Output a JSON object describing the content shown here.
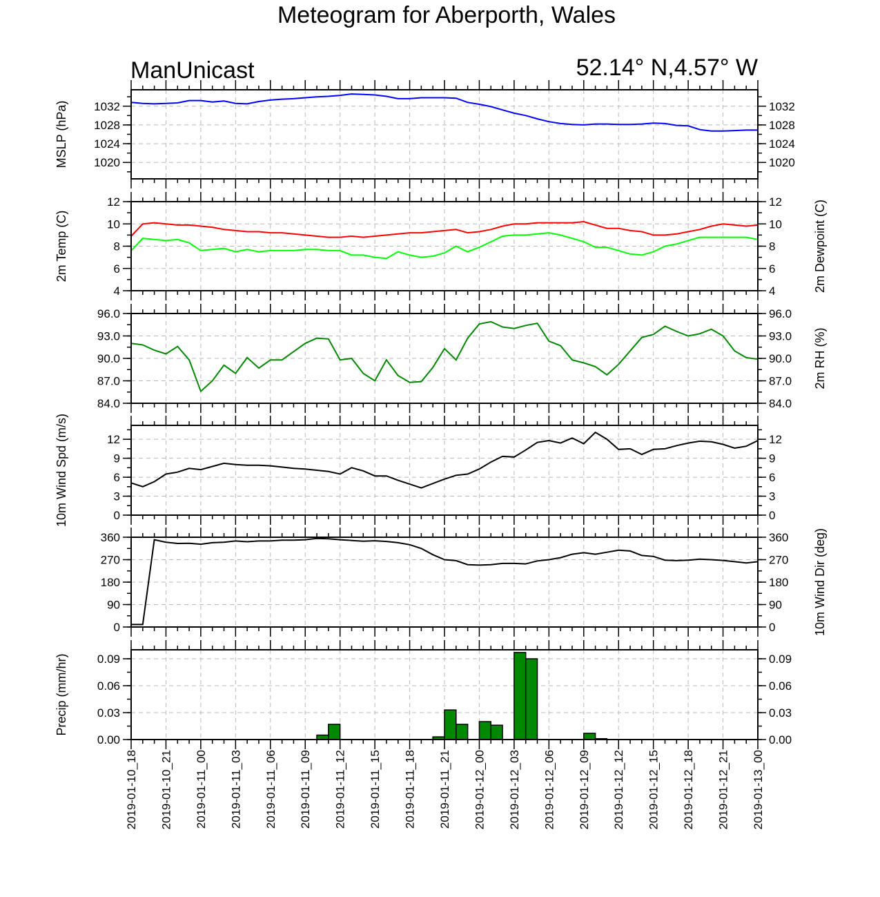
{
  "title": "Meteogram for Aberporth, Wales",
  "left_label": "ManUnicast",
  "right_label": "52.14° N,4.57° W",
  "colors": {
    "mslp": "#0000ff",
    "temp": "#ff0000",
    "dewpoint": "#00ff00",
    "rh": "#008800",
    "wind": "#000000",
    "precip_fill": "#008800"
  },
  "chart_data": {
    "type": "line",
    "x_tick_labels": [
      "2019-01-10_18",
      "2019-01-10_21",
      "2019-01-11_00",
      "2019-01-11_03",
      "2019-01-11_06",
      "2019-01-11_09",
      "2019-01-11_12",
      "2019-01-11_15",
      "2019-01-11_18",
      "2019-01-11_21",
      "2019-01-12_00",
      "2019-01-12_03",
      "2019-01-12_06",
      "2019-01-12_09",
      "2019-01-12_12",
      "2019-01-12_15",
      "2019-01-12_18",
      "2019-01-12_21",
      "2019-01-13_00"
    ],
    "x_hours": [
      0,
      1,
      2,
      3,
      4,
      5,
      6,
      7,
      8,
      9,
      10,
      11,
      12,
      13,
      14,
      15,
      16,
      17,
      18,
      19,
      20,
      21,
      22,
      23,
      24,
      25,
      26,
      27,
      28,
      29,
      30,
      31,
      32,
      33,
      34,
      35,
      36,
      37,
      38,
      39,
      40,
      41,
      42,
      43,
      44,
      45,
      46,
      47,
      48,
      49,
      50,
      51,
      52,
      53,
      54
    ],
    "panels": [
      {
        "id": "mslp",
        "ylabel_left": "MSLP (hPa)",
        "ylabel_right": "",
        "ylim": [
          1016.5,
          1035.5
        ],
        "yticks": [
          1020,
          1024,
          1028,
          1032
        ],
        "tick_labels": [
          "1020",
          "1024",
          "1028",
          "1032"
        ],
        "series": [
          {
            "values": [
              1032.8,
              1032.6,
              1032.5,
              1032.6,
              1032.7,
              1033.2,
              1033.2,
              1032.9,
              1033.1,
              1032.6,
              1032.5,
              1033.0,
              1033.3,
              1033.5,
              1033.6,
              1033.8,
              1034.0,
              1034.1,
              1034.3,
              1034.6,
              1034.5,
              1034.4,
              1034.1,
              1033.6,
              1033.6,
              1033.8,
              1033.8,
              1033.8,
              1033.7,
              1032.8,
              1032.4,
              1031.9,
              1031.2,
              1030.5,
              1030.0,
              1029.3,
              1028.7,
              1028.3,
              1028.1,
              1028.0,
              1028.2,
              1028.2,
              1028.1,
              1028.1,
              1028.2,
              1028.4,
              1028.3,
              1027.9,
              1027.8,
              1027.0,
              1026.7,
              1026.7,
              1026.8,
              1026.9,
              1026.9
            ]
          }
        ]
      },
      {
        "id": "temp",
        "ylabel_left": "2m Temp (C)",
        "ylabel_right": "2m Dewpoint (C)",
        "ylim": [
          4,
          12
        ],
        "yticks": [
          4,
          6,
          8,
          10,
          12
        ],
        "tick_labels": [
          "4",
          "6",
          "8",
          "10",
          "12"
        ],
        "series": [
          {
            "values": [
              8.9,
              10.0,
              10.1,
              10.0,
              9.9,
              9.9,
              9.8,
              9.7,
              9.5,
              9.4,
              9.3,
              9.3,
              9.2,
              9.2,
              9.1,
              9.0,
              8.9,
              8.8,
              8.8,
              8.9,
              8.8,
              8.9,
              9.0,
              9.1,
              9.2,
              9.2,
              9.3,
              9.4,
              9.5,
              9.2,
              9.3,
              9.5,
              9.8,
              10.0,
              10.0,
              10.1,
              10.1,
              10.1,
              10.1,
              10.2,
              9.9,
              9.6,
              9.6,
              9.4,
              9.3,
              9.0,
              9.0,
              9.1,
              9.3,
              9.5,
              9.8,
              10.0,
              9.9,
              9.8,
              9.9
            ]
          },
          {
            "values": [
              7.6,
              8.7,
              8.6,
              8.5,
              8.6,
              8.3,
              7.6,
              7.7,
              7.8,
              7.5,
              7.7,
              7.5,
              7.6,
              7.6,
              7.6,
              7.7,
              7.7,
              7.6,
              7.6,
              7.2,
              7.2,
              7.0,
              6.9,
              7.5,
              7.2,
              7.0,
              7.1,
              7.4,
              8.0,
              7.5,
              7.9,
              8.4,
              8.9,
              9.0,
              9.0,
              9.1,
              9.2,
              9.0,
              8.7,
              8.4,
              7.9,
              7.9,
              7.6,
              7.3,
              7.2,
              7.5,
              8.0,
              8.2,
              8.5,
              8.8,
              8.8,
              8.8,
              8.8,
              8.8,
              8.6
            ]
          }
        ]
      },
      {
        "id": "rh",
        "ylabel_left": "",
        "ylabel_right": "2m RH (%)",
        "ylim": [
          84,
          96
        ],
        "yticks": [
          84,
          87,
          90,
          93,
          96
        ],
        "tick_labels": [
          "84.0",
          "87.0",
          "90.0",
          "93.0",
          "96.0"
        ],
        "series": [
          {
            "values": [
              92.0,
              91.8,
              91.1,
              90.6,
              91.6,
              89.8,
              85.6,
              87.0,
              89.1,
              88.0,
              90.1,
              88.7,
              89.8,
              89.8,
              90.9,
              92.0,
              92.7,
              92.6,
              89.8,
              90.0,
              88.0,
              87.0,
              89.8,
              87.7,
              86.8,
              86.9,
              88.8,
              91.3,
              89.8,
              92.7,
              94.6,
              94.9,
              94.2,
              94.0,
              94.4,
              94.7,
              92.3,
              91.7,
              89.8,
              89.4,
              88.9,
              87.8,
              89.2,
              91.0,
              92.8,
              93.2,
              94.3,
              93.6,
              93.0,
              93.3,
              93.9,
              93.0,
              91.0,
              90.1,
              89.9
            ]
          }
        ]
      },
      {
        "id": "wspd",
        "ylabel_left": "10m Wind Spd (m/s)",
        "ylabel_right": "",
        "ylim": [
          0,
          14.2
        ],
        "yticks": [
          0,
          3,
          6,
          9,
          12
        ],
        "tick_labels": [
          "0",
          "3",
          "6",
          "9",
          "12"
        ],
        "series": [
          {
            "values": [
              5.1,
              4.5,
              5.3,
              6.5,
              6.8,
              7.4,
              7.2,
              7.7,
              8.2,
              8.0,
              7.9,
              7.9,
              7.8,
              7.6,
              7.4,
              7.3,
              7.1,
              6.9,
              6.5,
              7.5,
              7.0,
              6.2,
              6.2,
              5.5,
              4.9,
              4.3,
              5.0,
              5.7,
              6.3,
              6.5,
              7.3,
              8.4,
              9.3,
              9.2,
              10.3,
              11.5,
              11.8,
              11.4,
              12.2,
              11.3,
              13.1,
              12.0,
              10.4,
              10.5,
              9.6,
              10.4,
              10.5,
              11.0,
              11.4,
              11.7,
              11.6,
              11.2,
              10.6,
              10.9,
              11.8
            ]
          }
        ]
      },
      {
        "id": "wdir",
        "ylabel_left": "",
        "ylabel_right": "10m Wind Dir (deg)",
        "ylim": [
          0,
          360
        ],
        "yticks": [
          0,
          90,
          180,
          270,
          360
        ],
        "tick_labels": [
          "0",
          "90",
          "180",
          "270",
          "360"
        ],
        "series": [
          {
            "values": [
              10,
              10,
              350,
              340,
              335,
              336,
              332,
              338,
              340,
              345,
              342,
              345,
              345,
              348,
              348,
              350,
              355,
              354,
              350,
              347,
              344,
              346,
              343,
              338,
              330,
              315,
              290,
              270,
              266,
              250,
              248,
              250,
              255,
              255,
              253,
              265,
              270,
              278,
              292,
              298,
              292,
              300,
              308,
              305,
              287,
              283,
              268,
              266,
              268,
              272,
              270,
              267,
              262,
              257,
              262
            ]
          }
        ]
      },
      {
        "id": "precip",
        "ylabel_left": "Precip (mm/hr)",
        "ylabel_right": "",
        "ylim": [
          0,
          0.1
        ],
        "yticks": [
          0,
          0.03,
          0.06,
          0.09
        ],
        "tick_labels": [
          "0.00",
          "0.03",
          "0.06",
          "0.09"
        ],
        "bars": [
          {
            "hour": 16.5,
            "value": 0.005
          },
          {
            "hour": 17.5,
            "value": 0.017
          },
          {
            "hour": 26.5,
            "value": 0.003
          },
          {
            "hour": 27.5,
            "value": 0.033
          },
          {
            "hour": 28.5,
            "value": 0.017
          },
          {
            "hour": 30.5,
            "value": 0.02
          },
          {
            "hour": 31.5,
            "value": 0.016
          },
          {
            "hour": 33.5,
            "value": 0.097
          },
          {
            "hour": 34.5,
            "value": 0.09
          },
          {
            "hour": 39.5,
            "value": 0.007
          },
          {
            "hour": 40.5,
            "value": 0.001
          }
        ]
      }
    ]
  }
}
